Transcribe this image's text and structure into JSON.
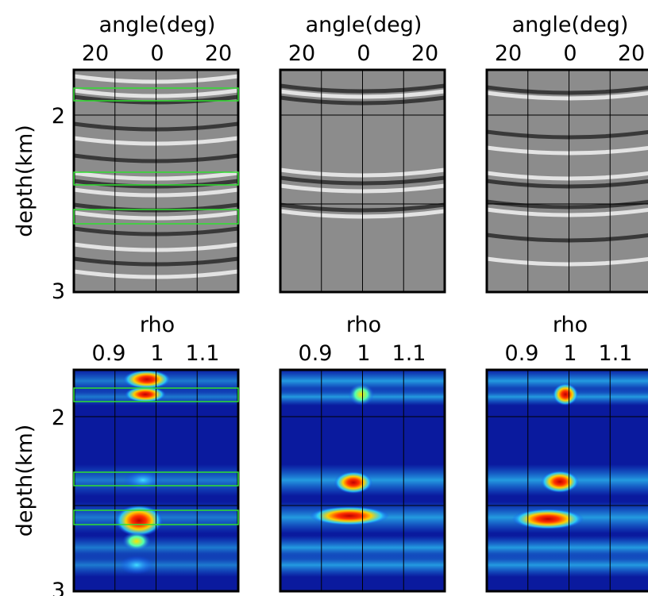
{
  "rows": [
    {
      "y_label": "depth(km)",
      "y_ticks": [
        "2",
        "3"
      ],
      "panels": [
        {
          "x_label": "angle(deg)",
          "x_ticks": [
            "20",
            "0",
            "20"
          ]
        },
        {
          "x_label": "angle(deg)",
          "x_ticks": [
            "20",
            "0",
            "20"
          ]
        },
        {
          "x_label": "angle(deg)",
          "x_ticks": [
            "20",
            "0",
            "20"
          ]
        }
      ]
    },
    {
      "y_label": "depth(km)",
      "y_ticks": [
        "2",
        "3"
      ],
      "panels": [
        {
          "x_label": "rho",
          "x_ticks": [
            "0.9",
            "1",
            "1.1"
          ]
        },
        {
          "x_label": "rho",
          "x_ticks": [
            "0.9",
            "1",
            "1.1"
          ]
        },
        {
          "x_label": "rho",
          "x_ticks": [
            "0.9",
            "1",
            "1.1"
          ]
        }
      ]
    }
  ]
}
